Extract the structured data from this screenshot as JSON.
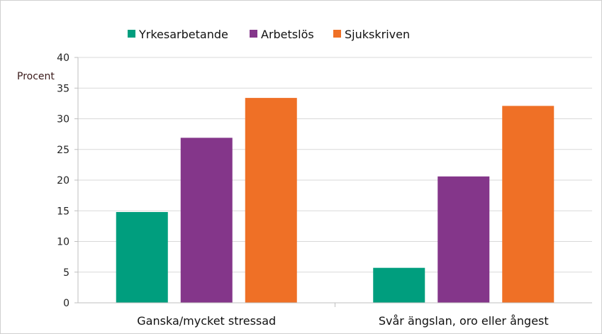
{
  "chart_data": {
    "type": "bar",
    "title": "",
    "ylabel": "Procent",
    "xlabel": "",
    "ylim": [
      0,
      40
    ],
    "yticks": [
      0,
      5,
      10,
      15,
      20,
      25,
      30,
      35,
      40
    ],
    "grid": true,
    "legend_position": "top",
    "categories": [
      "Ganska/mycket stressad",
      "Svår ängslan, oro eller ångest"
    ],
    "series": [
      {
        "name": "Yrkesarbetande",
        "color": "#009e7e",
        "values": [
          14.8,
          5.7
        ]
      },
      {
        "name": "Arbetslös",
        "color": "#84368a",
        "values": [
          26.9,
          20.6
        ]
      },
      {
        "name": "Sjukskriven",
        "color": "#ef7026",
        "values": [
          33.4,
          32.1
        ]
      }
    ]
  }
}
